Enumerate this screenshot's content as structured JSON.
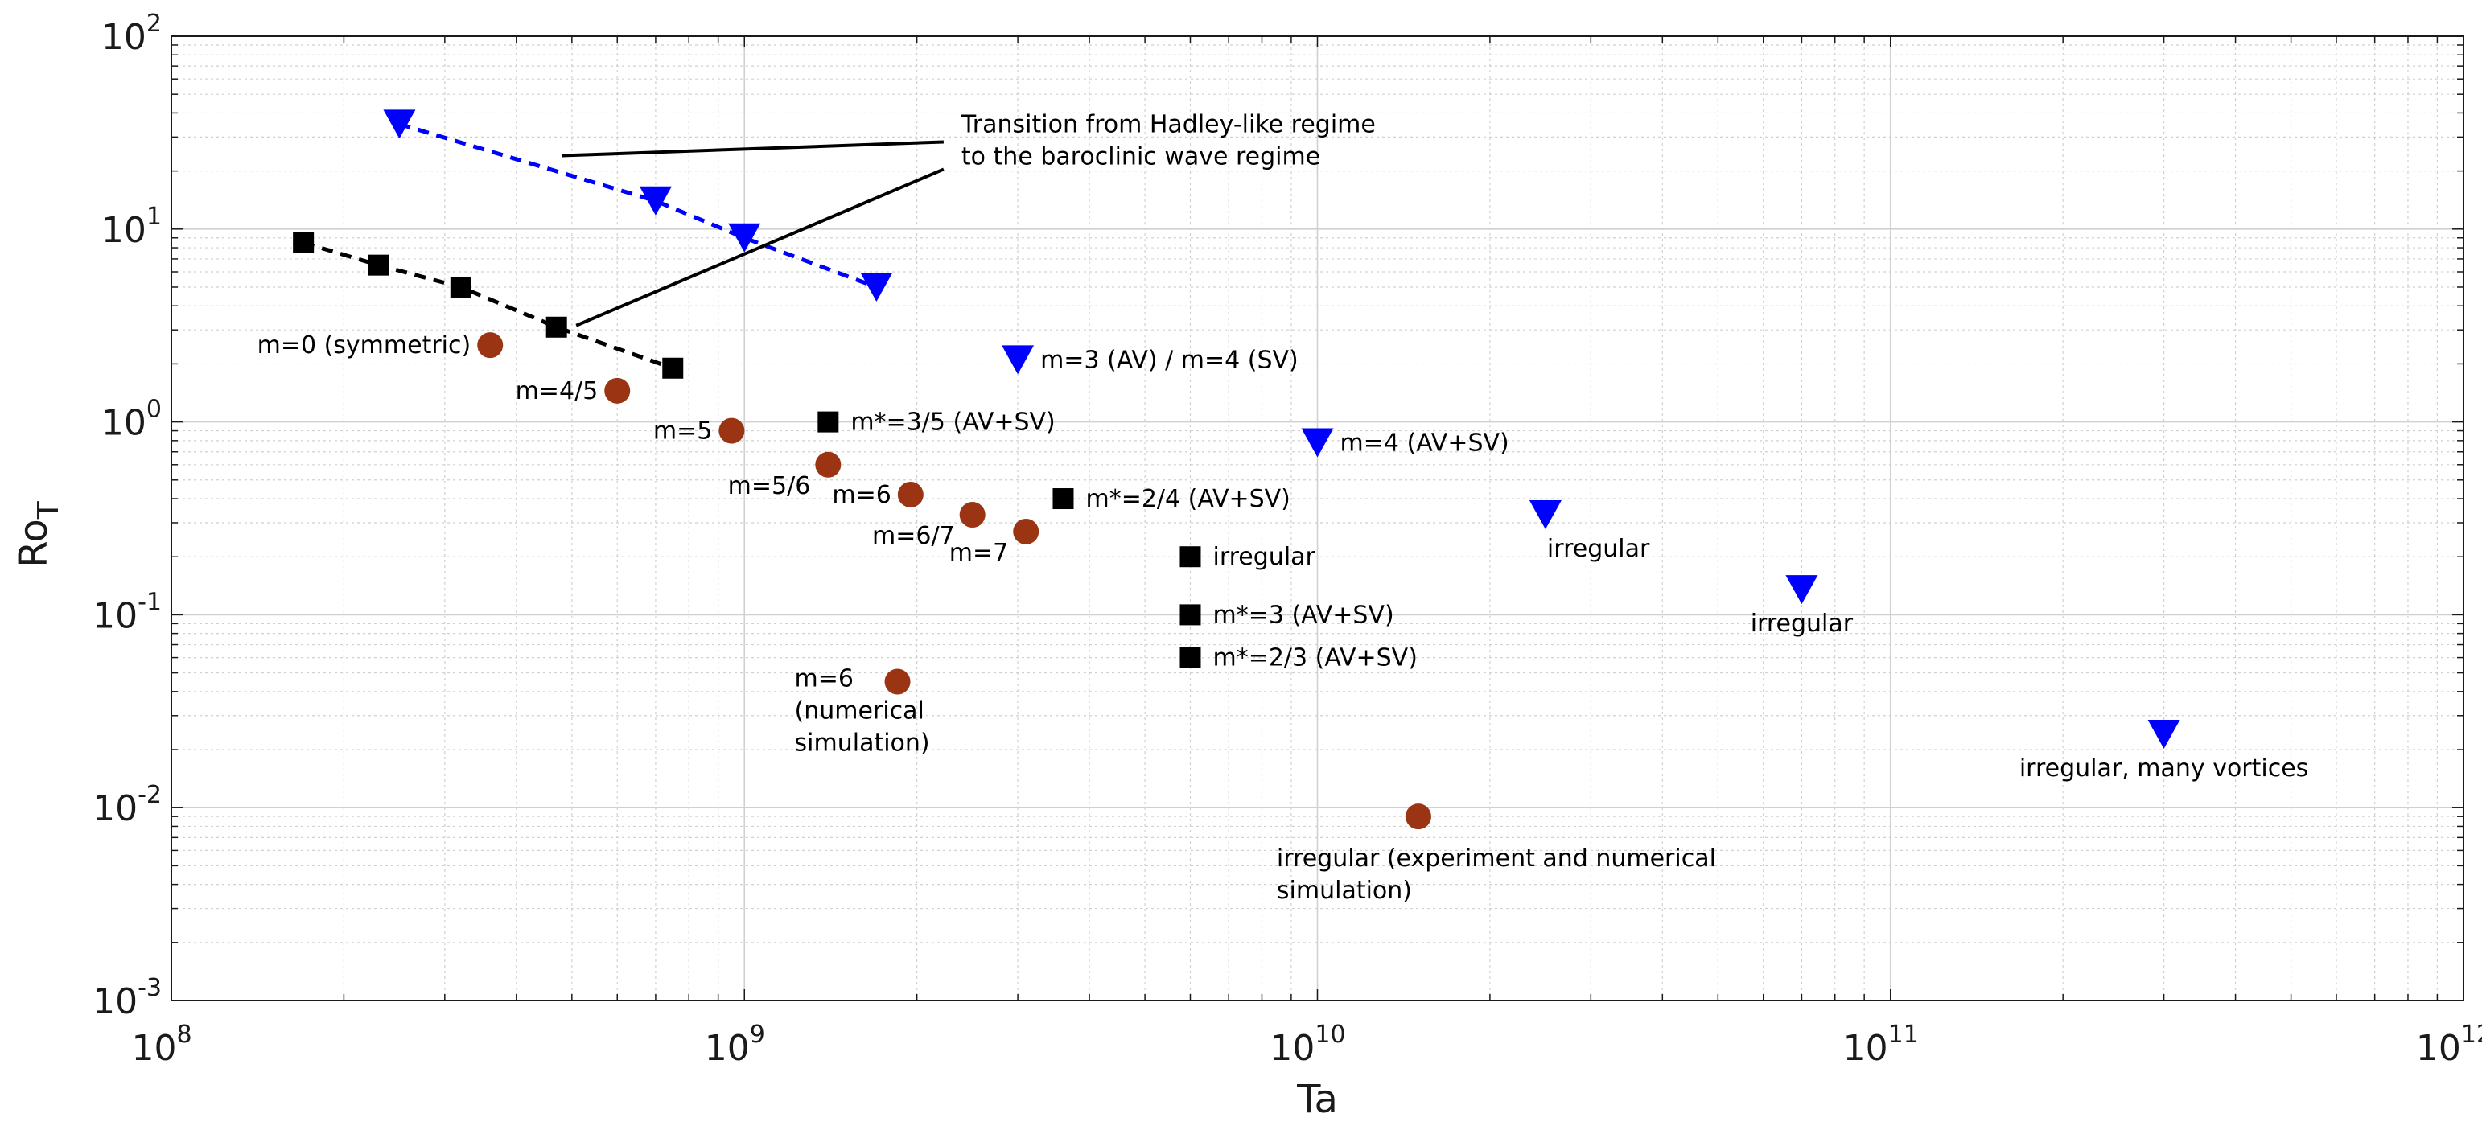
{
  "chart_data": {
    "type": "scatter",
    "xscale": "log",
    "yscale": "log",
    "xlim": [
      100000000,
      1000000000000
    ],
    "ylim": [
      0.001,
      100
    ],
    "xlabel": "Ta",
    "ylabel": {
      "main": "Ro",
      "subscript": "T"
    },
    "x_ticks": [
      {
        "base": "10",
        "exp": "8",
        "value": 100000000
      },
      {
        "base": "10",
        "exp": "9",
        "value": 1000000000
      },
      {
        "base": "10",
        "exp": "10",
        "value": 10000000000
      },
      {
        "base": "10",
        "exp": "11",
        "value": 100000000000
      },
      {
        "base": "10",
        "exp": "12",
        "value": 1000000000000
      }
    ],
    "y_ticks": [
      {
        "base": "10",
        "exp": "-3",
        "value": 0.001
      },
      {
        "base": "10",
        "exp": "-2",
        "value": 0.01
      },
      {
        "base": "10",
        "exp": "-1",
        "value": 0.1
      },
      {
        "base": "10",
        "exp": "0",
        "value": 1
      },
      {
        "base": "10",
        "exp": "1",
        "value": 10
      },
      {
        "base": "10",
        "exp": "2",
        "value": 100
      }
    ],
    "grid": true,
    "colors": {
      "circle": "#9a3412",
      "square": "#000000",
      "triangle": "#0000ff",
      "grid": "#d0d0d0"
    },
    "series": [
      {
        "name": "circles",
        "marker": "circle",
        "color": "#9a3412",
        "points": [
          {
            "x": 360000000,
            "y": 2.5,
            "label": "m=0 (symmetric)",
            "label_anchor": "left"
          },
          {
            "x": 600000000,
            "y": 1.45,
            "label": "m=4/5",
            "label_anchor": "left"
          },
          {
            "x": 950000000,
            "y": 0.9,
            "label": "m=5",
            "label_anchor": "left"
          },
          {
            "x": 1400000000,
            "y": 0.6,
            "label": "m=5/6",
            "label_anchor": "below-left"
          },
          {
            "x": 1950000000,
            "y": 0.42,
            "label": "m=6",
            "label_anchor": "left"
          },
          {
            "x": 2500000000,
            "y": 0.33,
            "label": "m=6/7",
            "label_anchor": "below-left"
          },
          {
            "x": 3100000000,
            "y": 0.27,
            "label": "m=7",
            "label_anchor": "below-left"
          },
          {
            "x": 1850000000,
            "y": 0.045,
            "label": "m=6\n(numerical\nsimulation)",
            "label_anchor": "left-block"
          },
          {
            "x": 15000000000,
            "y": 0.009,
            "label": "irregular (experiment and numerical\nsimulation)",
            "label_anchor": "below"
          }
        ]
      },
      {
        "name": "squares",
        "marker": "square",
        "color": "#000000",
        "points": [
          {
            "x": 170000000,
            "y": 8.5,
            "label": ""
          },
          {
            "x": 230000000,
            "y": 6.5,
            "label": ""
          },
          {
            "x": 320000000,
            "y": 5,
            "label": ""
          },
          {
            "x": 470000000,
            "y": 3.1,
            "label": ""
          },
          {
            "x": 750000000,
            "y": 1.9,
            "label": ""
          },
          {
            "x": 1400000000,
            "y": 1.0,
            "label": "m*=3/5 (AV+SV)",
            "label_anchor": "right"
          },
          {
            "x": 3600000000,
            "y": 0.4,
            "label": "m*=2/4 (AV+SV)",
            "label_anchor": "right"
          },
          {
            "x": 6000000000,
            "y": 0.2,
            "label": "irregular",
            "label_anchor": "right"
          },
          {
            "x": 6000000000,
            "y": 0.1,
            "label": "m*=3 (AV+SV)",
            "label_anchor": "right"
          },
          {
            "x": 6000000000,
            "y": 0.06,
            "label": "m*=2/3 (AV+SV)",
            "label_anchor": "right"
          }
        ]
      },
      {
        "name": "triangles",
        "marker": "triangle-down",
        "color": "#0000ff",
        "points": [
          {
            "x": 250000000,
            "y": 35,
            "label": ""
          },
          {
            "x": 700000000,
            "y": 14,
            "label": ""
          },
          {
            "x": 1000000000,
            "y": 9,
            "label": ""
          },
          {
            "x": 1700000000,
            "y": 5,
            "label": ""
          },
          {
            "x": 3000000000,
            "y": 2.1,
            "label": "m=3 (AV) / m=4 (SV)",
            "label_anchor": "right"
          },
          {
            "x": 10000000000,
            "y": 0.78,
            "label": "m=4 (AV+SV)",
            "label_anchor": "right"
          },
          {
            "x": 25000000000,
            "y": 0.33,
            "label": "irregular",
            "label_anchor": "below-right"
          },
          {
            "x": 70000000000,
            "y": 0.135,
            "label": "irregular",
            "label_anchor": "below"
          },
          {
            "x": 300000000000,
            "y": 0.024,
            "label": "irregular, many vortices",
            "label_anchor": "below"
          }
        ]
      }
    ],
    "dashed_lines": [
      {
        "color": "#000000",
        "points": [
          [
            170000000,
            8.5
          ],
          [
            230000000,
            6.5
          ],
          [
            320000000,
            5
          ],
          [
            470000000,
            3.1
          ],
          [
            750000000,
            1.9
          ]
        ]
      },
      {
        "color": "#0000ff",
        "points": [
          [
            250000000,
            35
          ],
          [
            700000000,
            14
          ],
          [
            1000000000,
            9
          ],
          [
            1700000000,
            5
          ]
        ]
      }
    ],
    "annotation": {
      "text": [
        "Transition from Hadley-like regime",
        "to the baroclinic wave regime"
      ],
      "anchor": {
        "x": 2300000000,
        "y": 33
      },
      "arrows_to": [
        {
          "x": 480000000,
          "y": 21
        },
        {
          "x": 480000000,
          "y": 3.1
        }
      ]
    }
  }
}
